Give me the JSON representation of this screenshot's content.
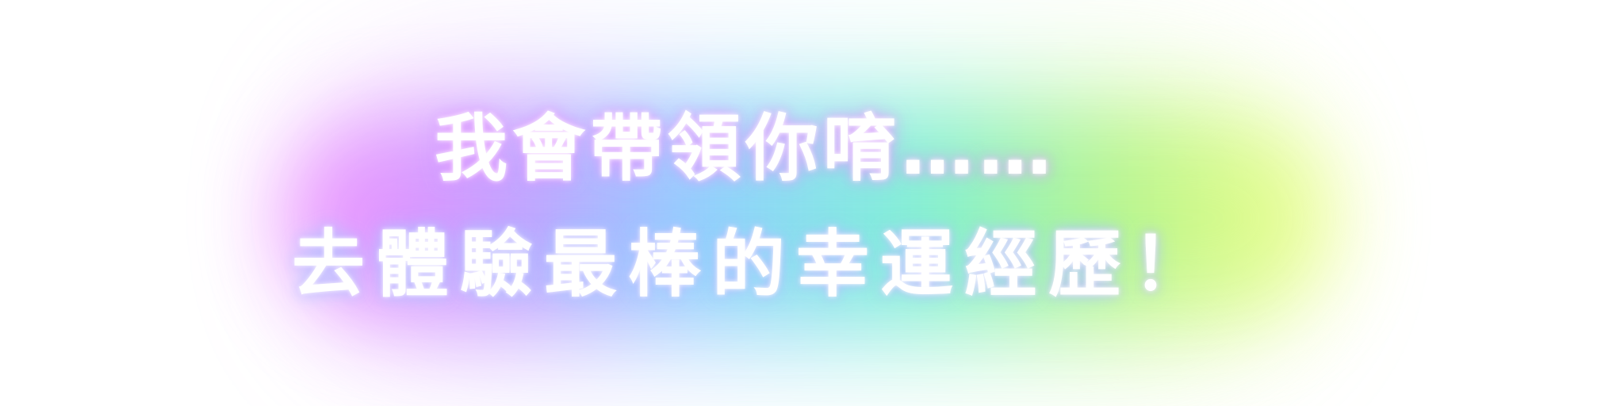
{
  "banner": {
    "line1": "我會帶領你唷……",
    "line2": "去體驗最棒的幸運經歷！"
  },
  "colors": {
    "background": "#ffffff",
    "text": "#ffffff",
    "glow_gradient": [
      "#f08cff",
      "#c89cff",
      "#8fd0ff",
      "#7ff0d8",
      "#b8f58a",
      "#f2ff8a"
    ]
  }
}
